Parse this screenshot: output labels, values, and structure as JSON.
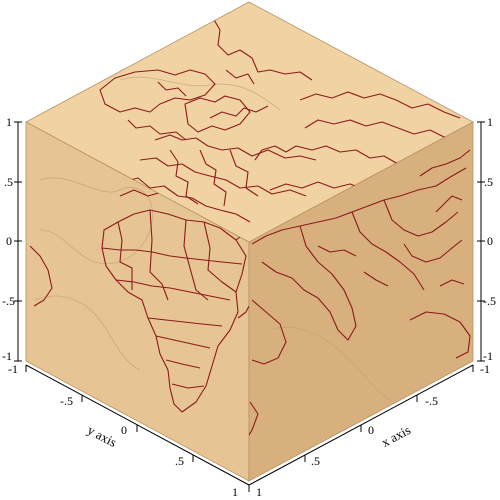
{
  "plot": {
    "type": "3d-surface-cube",
    "description_visible": "World map projected onto three faces of a unit cube",
    "colors": {
      "face_top": "#f1d3a3",
      "face_left": "#e7c493",
      "face_right": "#d7b07e",
      "cube_edge": "#b89262",
      "map_line": "#8b1a1a",
      "faint_map_line": "#c39b76",
      "axis": "#000000"
    },
    "axes": {
      "x": {
        "label": "x axis",
        "ticks": [
          "-1",
          "-.5",
          "0",
          ".5",
          "1"
        ]
      },
      "y": {
        "label": "y axis",
        "ticks": [
          "-1",
          "-.5",
          "0",
          ".5",
          "1"
        ]
      },
      "z": {
        "ticks_left": [
          "1",
          ".5",
          "0",
          "-.5",
          "-1"
        ],
        "ticks_right": [
          "1",
          ".5",
          "0",
          "-.5",
          "-1"
        ]
      }
    }
  }
}
